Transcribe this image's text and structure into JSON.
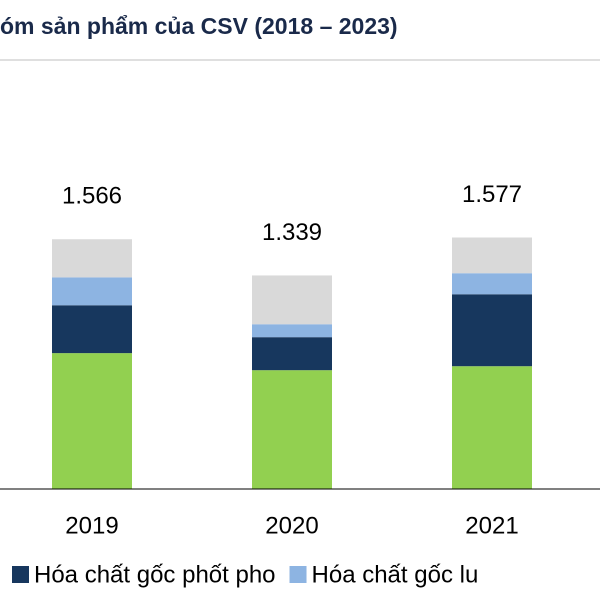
{
  "chart_data": {
    "type": "stacked-bar",
    "title": "óm sản phẩm của CSV (2018 – 2023)",
    "categories": [
      "2019",
      "2020",
      "2021"
    ],
    "series": [
      {
        "color": "#92d050",
        "values": [
          0.852,
          0.745,
          0.77
        ]
      },
      {
        "name": "Hóa chất gốc phốt pho",
        "color": "#17375e",
        "values": [
          0.3,
          0.207,
          0.451
        ]
      },
      {
        "name": "Hóa chất gốc lu",
        "color": "#8db4e2",
        "values": [
          0.175,
          0.081,
          0.132
        ]
      },
      {
        "color": "#d9d9d9",
        "values": [
          0.239,
          0.306,
          0.224
        ]
      }
    ],
    "totals": [
      1.566,
      1.339,
      1.577
    ],
    "ylim": [
      0,
      2.69
    ]
  }
}
